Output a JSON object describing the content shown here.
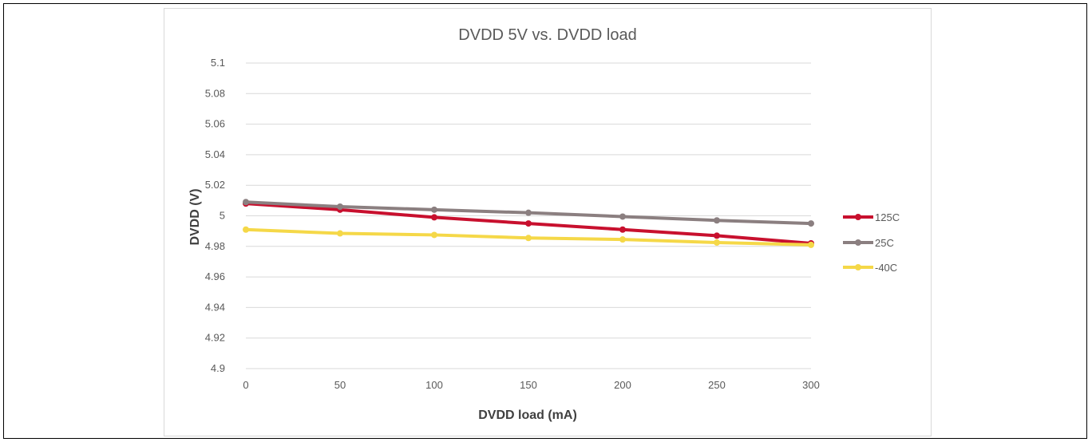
{
  "chart_data": {
    "type": "line",
    "title": "DVDD 5V vs. DVDD load",
    "xlabel": "DVDD load (mA)",
    "ylabel": "DVDD (V)",
    "x": [
      0,
      50,
      100,
      150,
      200,
      250,
      300
    ],
    "x_tick_labels": [
      "0",
      "50",
      "100",
      "150",
      "200",
      "250",
      "300"
    ],
    "y_tick_labels": [
      "5.1",
      "5.08",
      "5.06",
      "5.04",
      "5.02",
      "5",
      "4.98",
      "4.96",
      "4.94",
      "4.92",
      "4.9"
    ],
    "ylim": [
      4.9,
      5.1
    ],
    "xlim": [
      0,
      300
    ],
    "grid": "horizontal",
    "legend_position": "right",
    "series": [
      {
        "name": "125C",
        "color": "#c8102e",
        "values": [
          5.008,
          5.004,
          4.999,
          4.995,
          4.991,
          4.987,
          4.982
        ]
      },
      {
        "name": "25C",
        "color": "#8b7f80",
        "values": [
          5.009,
          5.006,
          5.004,
          5.002,
          4.9995,
          4.997,
          4.995
        ]
      },
      {
        "name": "-40C",
        "color": "#f5d848",
        "values": [
          4.991,
          4.9885,
          4.9875,
          4.9855,
          4.9845,
          4.9825,
          4.981
        ]
      }
    ]
  }
}
